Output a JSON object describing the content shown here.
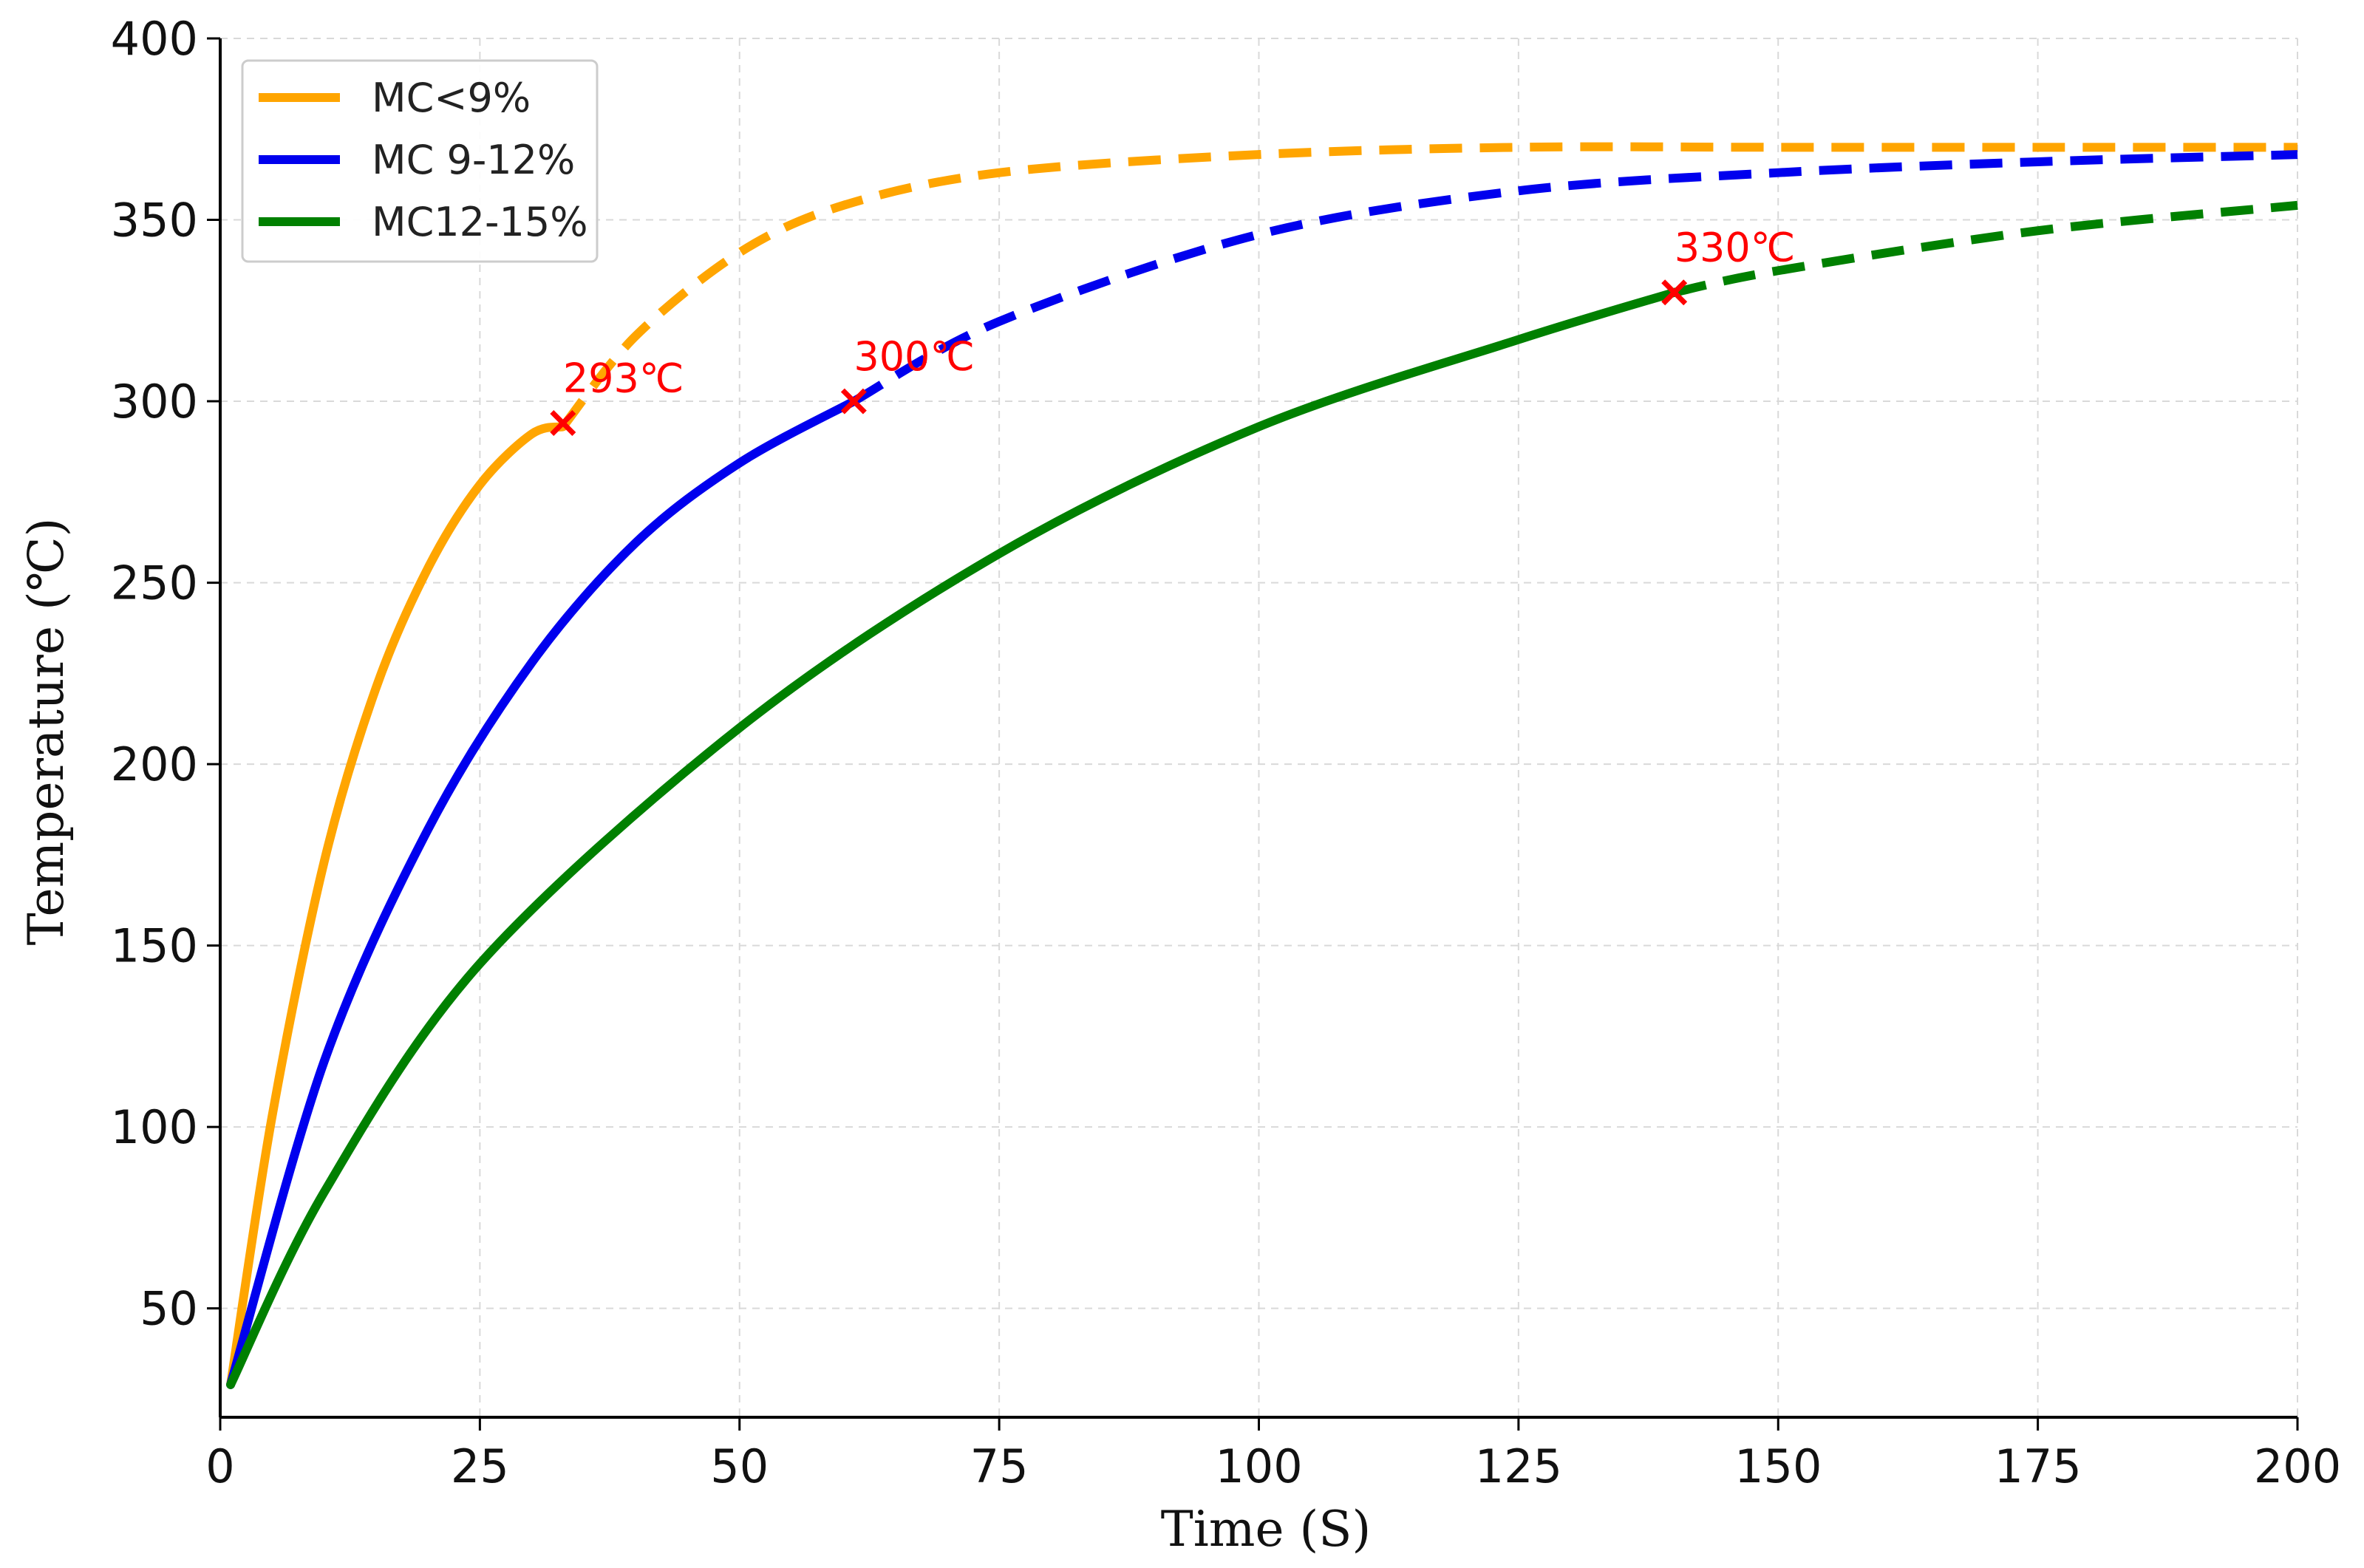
{
  "chart_data": {
    "type": "line",
    "title": "",
    "xlabel": "Time (S)",
    "ylabel": "Temperature (℃)",
    "xlim": [
      0,
      200
    ],
    "ylim": [
      20,
      400
    ],
    "xticks": [
      0,
      25,
      50,
      75,
      100,
      125,
      150,
      175,
      200
    ],
    "yticks": [
      50,
      100,
      150,
      200,
      250,
      300,
      350,
      400
    ],
    "grid": true,
    "legend_position": "top-left",
    "series": [
      {
        "name": "MC<9%",
        "color": "#FFA500",
        "x": [
          1,
          5,
          10,
          15,
          20,
          25,
          30,
          33,
          40,
          50,
          60,
          75,
          100,
          125,
          150,
          175,
          200
        ],
        "y": [
          29,
          103,
          173,
          221,
          254,
          277,
          291,
          293,
          318,
          341,
          354,
          363,
          368,
          370,
          370,
          370,
          370
        ],
        "solid_until_x": 33
      },
      {
        "name": "MC 9-12%",
        "color": "#0000EE",
        "x": [
          1,
          10,
          20,
          30,
          40,
          50,
          61,
          75,
          100,
          125,
          150,
          175,
          200
        ],
        "y": [
          29,
          118,
          182,
          228,
          261,
          283,
          300,
          322,
          346,
          358,
          363,
          366,
          368
        ],
        "solid_until_x": 61
      },
      {
        "name": "MC12-15%",
        "color": "#008000",
        "x": [
          1,
          10,
          25,
          50,
          75,
          100,
          125,
          140,
          150,
          175,
          200
        ],
        "y": [
          29,
          82,
          145,
          210,
          258,
          293,
          317,
          330,
          336,
          347,
          354
        ],
        "solid_until_x": 140
      }
    ],
    "annotations": [
      {
        "label": "293℃",
        "x": 33,
        "y": 294,
        "color": "#FF0000"
      },
      {
        "label": "300℃",
        "x": 61,
        "y": 300,
        "color": "#FF0000"
      },
      {
        "label": "330℃",
        "x": 140,
        "y": 330,
        "color": "#FF0000"
      }
    ]
  }
}
